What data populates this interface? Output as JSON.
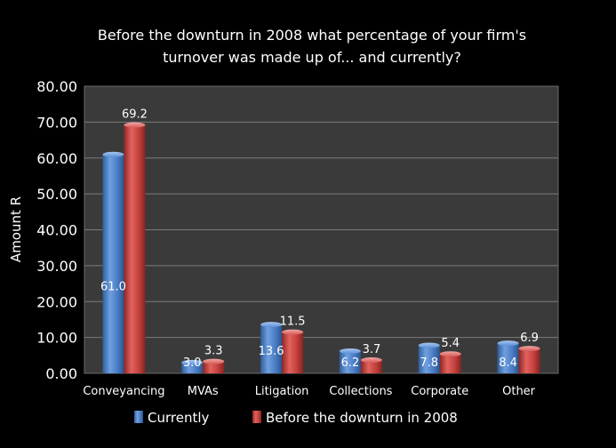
{
  "chart_data": {
    "type": "bar",
    "title_lines": [
      "Before the downturn in 2008 what percentage of your firm's",
      "turnover was made up of... and currently?"
    ],
    "xlabel": "",
    "ylabel": "Amount R",
    "ylim": [
      0,
      80
    ],
    "ytick_step": 10,
    "ytick_labels": [
      "0.00",
      "10.00",
      "20.00",
      "30.00",
      "40.00",
      "50.00",
      "60.00",
      "70.00",
      "80.00"
    ],
    "grid": true,
    "legend_position": "bottom",
    "categories": [
      "Conveyancing",
      "MVAs",
      "Litigation",
      "Collections",
      "Corporate",
      "Other"
    ],
    "series": [
      {
        "name": "Currently",
        "color": "#4f81bd",
        "values": [
          61.0,
          3.0,
          13.6,
          6.2,
          7.8,
          8.4
        ],
        "labels": [
          "61.0",
          "3.0",
          "13.6",
          "6.2",
          "7.8",
          "8.4"
        ]
      },
      {
        "name": "Before the downturn in 2008",
        "color": "#c0504d",
        "values": [
          69.2,
          3.3,
          11.5,
          3.7,
          5.4,
          6.9
        ],
        "labels": [
          "69.2",
          "3.3",
          "11.5",
          "3.7",
          "5.4",
          "6.9"
        ]
      }
    ]
  }
}
